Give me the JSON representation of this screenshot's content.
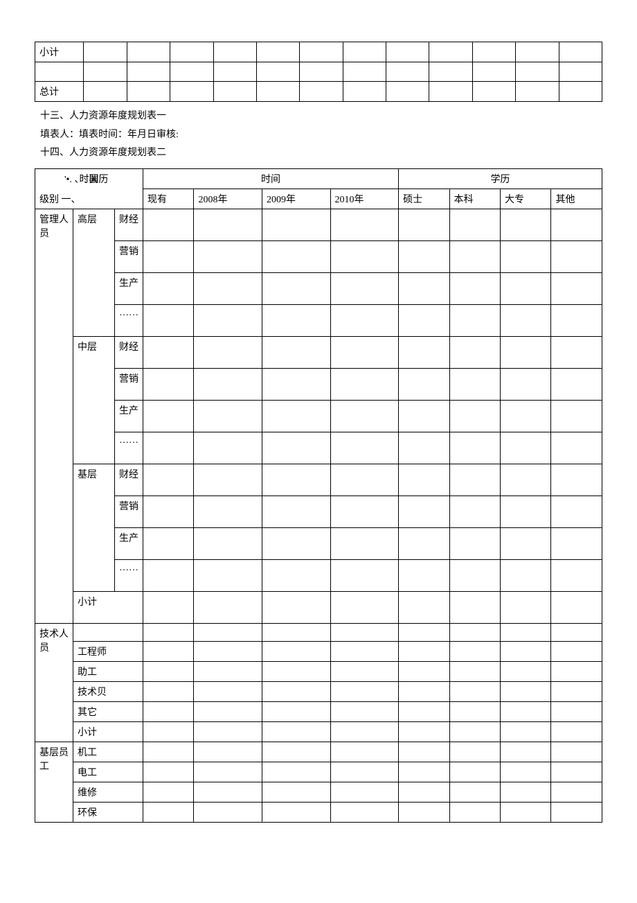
{
  "topTable": {
    "rowLabels": [
      "小计",
      "",
      "总计"
    ],
    "numCols": 13
  },
  "texts": {
    "line1": "十三、人力资源年度规划表一",
    "line2": "填表人：填表时间：年月日审核:",
    "line3": "十四、人力资源年度规划表二"
  },
  "mainTable": {
    "header": {
      "topLeft": "时间",
      "midCols": [
        "现有",
        "2008年",
        "2009年",
        "2010年"
      ],
      "rightHeader": "学历",
      "rightCols": [
        "硕士",
        "本科",
        "大专",
        "其他"
      ],
      "midHeader": "时间",
      "diagTop": "'•. 、. 罢历",
      "diagBot": "级别 一、"
    },
    "groups": [
      {
        "label": "管理人员",
        "subgroups": [
          {
            "label": "高层",
            "rows": [
              "财经",
              "营销",
              "生产",
              "……"
            ],
            "tall": true
          },
          {
            "label": "中层",
            "rows": [
              "财经",
              "营销",
              "生产",
              "……"
            ],
            "tall": true
          },
          {
            "label": "基层",
            "rows": [
              "财经",
              "营销",
              "生产",
              "……"
            ],
            "tall": true
          },
          {
            "label": "小计",
            "rows": [
              ""
            ],
            "tall": true,
            "single": true
          }
        ]
      },
      {
        "label": "技术人员",
        "subgroups": [
          {
            "label": "",
            "rows": [
              ""
            ],
            "tall": false,
            "single": true
          },
          {
            "label": "工程师",
            "rows": [
              ""
            ],
            "tall": false,
            "single": true
          },
          {
            "label": "助工",
            "rows": [
              ""
            ],
            "tall": false,
            "single": true
          },
          {
            "label": "技术贝",
            "rows": [
              ""
            ],
            "tall": false,
            "single": true
          },
          {
            "label": "其它",
            "rows": [
              ""
            ],
            "tall": false,
            "single": true
          },
          {
            "label": "小计",
            "rows": [
              ""
            ],
            "tall": false,
            "single": true
          }
        ]
      },
      {
        "label": "基层员工",
        "subgroups": [
          {
            "label": "机工",
            "rows": [
              ""
            ],
            "tall": false,
            "single": true
          },
          {
            "label": "电工",
            "rows": [
              ""
            ],
            "tall": false,
            "single": true
          },
          {
            "label": "维修",
            "rows": [
              ""
            ],
            "tall": false,
            "single": true
          },
          {
            "label": "环保",
            "rows": [
              ""
            ],
            "tall": false,
            "single": true
          }
        ]
      }
    ]
  },
  "style": {
    "bg": "#ffffff",
    "border": "#000000",
    "text": "#000000",
    "fontSize": 14
  }
}
